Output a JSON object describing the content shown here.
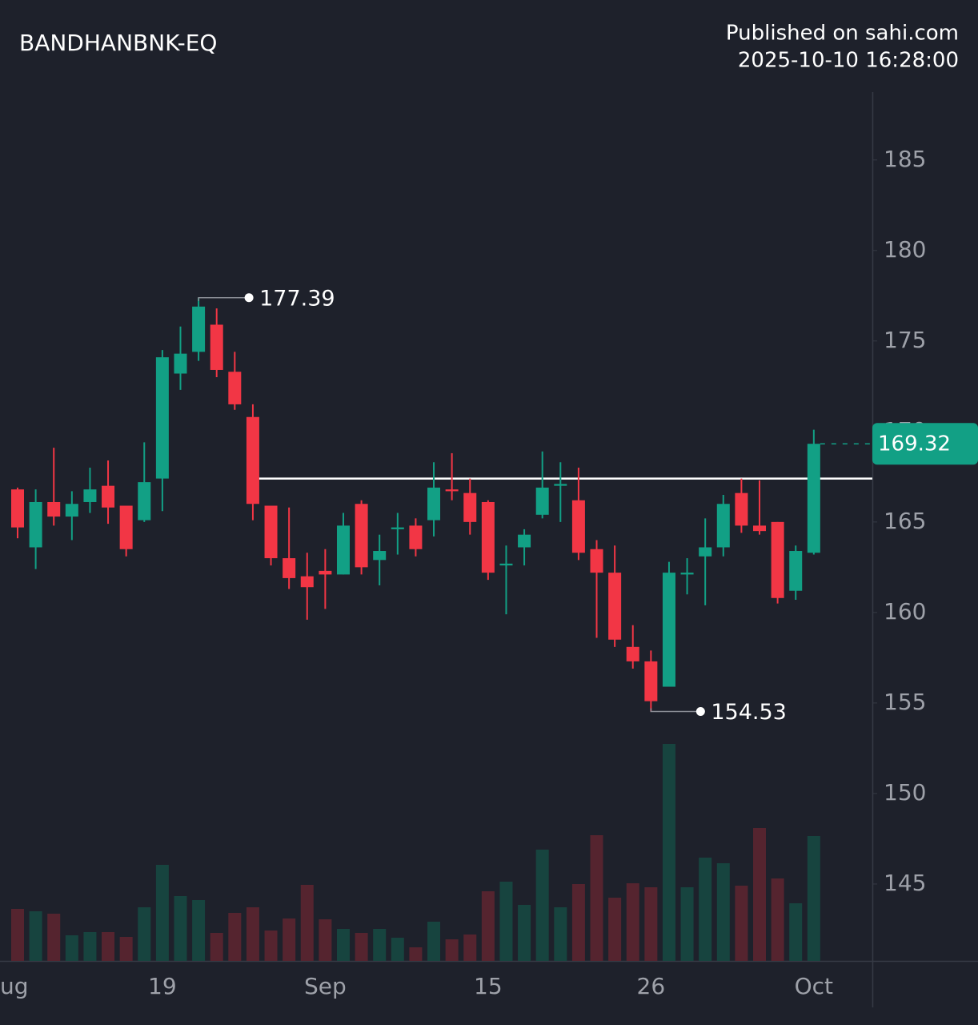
{
  "chart_data": {
    "type": "candlestick",
    "title": "BANDHANBNK-EQ",
    "publisher": "Published on sahi.com",
    "timestamp": "2025-10-10 16:28:00",
    "categories": [
      null,
      null,
      null,
      null,
      null,
      null,
      null,
      null,
      "19",
      null,
      null,
      null,
      null,
      null,
      null,
      null,
      null,
      "Sep",
      null,
      null,
      null,
      null,
      null,
      null,
      null,
      null,
      "15",
      null,
      null,
      null,
      null,
      null,
      null,
      null,
      null,
      "26",
      null,
      null,
      null,
      null,
      null,
      null,
      null,
      null,
      "Oct"
    ],
    "clipped_x_label": "ug",
    "open": [
      166.8,
      163.6,
      166.1,
      165.3,
      166.1,
      167.0,
      165.9,
      165.1,
      167.4,
      173.2,
      174.4,
      175.9,
      173.3,
      170.8,
      165.9,
      163.0,
      162.0,
      162.3,
      162.1,
      166.0,
      162.9,
      164.6,
      164.8,
      165.1,
      166.8,
      166.6,
      166.1,
      162.6,
      163.6,
      165.4,
      167.0,
      166.2,
      163.5,
      162.2,
      158.1,
      157.3,
      155.9,
      162.1,
      163.1,
      163.6,
      166.6,
      164.8,
      165.0,
      161.2,
      163.3
    ],
    "high": [
      166.9,
      166.8,
      169.1,
      166.7,
      168.0,
      168.4,
      165.9,
      169.4,
      174.5,
      175.8,
      177.39,
      176.8,
      174.4,
      171.5,
      165.9,
      165.8,
      163.3,
      163.5,
      165.5,
      166.2,
      164.3,
      165.5,
      165.2,
      168.3,
      168.8,
      167.4,
      166.2,
      163.7,
      164.6,
      168.9,
      168.3,
      168.0,
      164.0,
      163.7,
      159.3,
      157.9,
      162.8,
      163.0,
      165.2,
      166.5,
      167.4,
      167.3,
      165.0,
      163.7,
      170.1
    ],
    "low": [
      164.1,
      162.4,
      164.8,
      164.0,
      165.5,
      164.9,
      163.1,
      165.0,
      165.6,
      172.3,
      173.9,
      173.0,
      171.2,
      165.1,
      162.6,
      161.3,
      159.6,
      160.2,
      162.1,
      162.1,
      161.5,
      163.2,
      163.1,
      164.2,
      166.2,
      164.3,
      161.8,
      159.9,
      162.6,
      165.2,
      165.0,
      162.9,
      158.6,
      158.1,
      156.9,
      154.53,
      155.9,
      161.0,
      160.4,
      163.1,
      164.4,
      164.3,
      160.5,
      160.7,
      163.2
    ],
    "close": [
      164.7,
      166.1,
      165.3,
      166.0,
      166.8,
      165.8,
      163.5,
      167.2,
      174.1,
      174.3,
      176.9,
      173.4,
      171.5,
      166.0,
      163.0,
      161.9,
      161.4,
      162.1,
      164.8,
      162.5,
      163.4,
      164.7,
      163.5,
      166.9,
      166.7,
      165.0,
      162.2,
      162.7,
      164.3,
      166.9,
      167.1,
      163.3,
      162.2,
      158.5,
      157.3,
      155.1,
      162.2,
      162.2,
      163.6,
      166.0,
      164.8,
      164.5,
      160.8,
      163.4,
      169.32
    ],
    "volume": [
      65,
      62,
      59,
      32,
      36,
      36,
      30,
      67,
      120,
      81,
      76,
      35,
      60,
      67,
      38,
      53,
      95,
      52,
      40,
      35,
      40,
      29,
      17,
      49,
      27,
      33,
      87,
      99,
      70,
      139,
      67,
      96,
      157,
      79,
      97,
      92,
      271,
      92,
      129,
      122,
      94,
      166,
      103,
      72,
      156
    ],
    "up_color": "#12a085",
    "down_color": "#f23645",
    "up_volume_color": "#17443f",
    "down_volume_color": "#55242f",
    "hline": 167.4,
    "ylim": [
      140.75,
      188.75
    ],
    "yticks": [
      145,
      150,
      155,
      160,
      165,
      170,
      175,
      180,
      185
    ]
  }
}
